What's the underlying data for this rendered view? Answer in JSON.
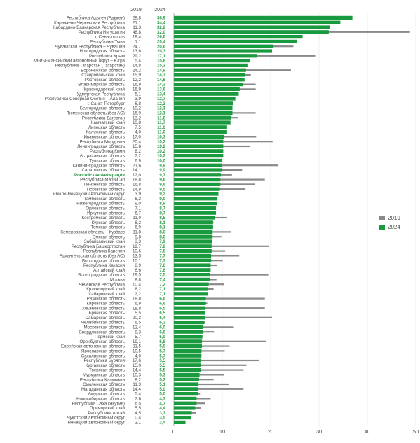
{
  "chart_data": {
    "type": "bar",
    "orientation": "horizontal",
    "headers": {
      "c2019": "2019",
      "c2024": "2024"
    },
    "highlight": "Российская Федерация",
    "xlim": [
      0,
      50
    ],
    "xticks": [
      "0",
      "10",
      "20",
      "30",
      "40",
      "50"
    ],
    "legend": {
      "position": "right",
      "s2019": "2019",
      "s2024": "2024"
    },
    "colors": {
      "s2019": "#8a8a8a",
      "s2024": "#1a9a3e"
    },
    "rows": [
      {
        "name": "Республика Адыгея (Адыгея)",
        "v2019": "28,8",
        "v2024": "36,9"
      },
      {
        "name": "Карачаево-Черкесская Республика",
        "v2019": "21,1",
        "v2024": "34,4"
      },
      {
        "name": "Кабардино-Балкарская Республика",
        "v2019": "11,3",
        "v2024": "32,2"
      },
      {
        "name": "Республика Ингушетия",
        "v2019": "48,8",
        "v2024": "32,0"
      },
      {
        "name": "г. Севастополь",
        "v2019": "19,4",
        "v2024": "26,6"
      },
      {
        "name": "Республика Тыва",
        "v2019": "1,1",
        "v2024": "25,4"
      },
      {
        "name": "Чувашская Республика – Чувашия",
        "v2019": "24,7",
        "v2024": "20,6"
      },
      {
        "name": "Новгородская область",
        "v2019": "13,6",
        "v2024": "20,3"
      },
      {
        "name": "Республика Крым",
        "v2019": "29,2",
        "v2024": "17,1"
      },
      {
        "name": "Ханты-Мансийский автономный округ – Югра",
        "v2019": "5,4",
        "v2024": "15,8"
      },
      {
        "name": "Республика Татарстан (Татарстан)",
        "v2019": "14,8",
        "v2024": "15,2"
      },
      {
        "name": "Воронежская область",
        "v2019": "24,2",
        "v2024": "14,9"
      },
      {
        "name": "Ставропольский край",
        "v2019": "15,9",
        "v2024": "14,7"
      },
      {
        "name": "Ростовская область",
        "v2019": "12,2",
        "v2024": "14,6"
      },
      {
        "name": "Владимирская область",
        "v2019": "16,9",
        "v2024": "14,2"
      },
      {
        "name": "Краснодарский край",
        "v2019": "16,9",
        "v2024": "13,6"
      },
      {
        "name": "Удмуртская Республика",
        "v2019": "5,1",
        "v2024": "13,4"
      },
      {
        "name": "Республика Северная Осетия – Алания",
        "v2019": "3,9",
        "v2024": "12,7"
      },
      {
        "name": "г. Санкт-Петербург",
        "v2019": "6,8",
        "v2024": "12,3"
      },
      {
        "name": "Белгородская область",
        "v2019": "10,2",
        "v2024": "12,1"
      },
      {
        "name": "Тюменская область (без АО)",
        "v2019": "16,9",
        "v2024": "12,1"
      },
      {
        "name": "Республика Дагестан",
        "v2019": "13,2",
        "v2024": "11,8"
      },
      {
        "name": "Камчатский край",
        "v2019": "10,8",
        "v2024": "11,7"
      },
      {
        "name": "Липецкая область",
        "v2019": "7,5",
        "v2024": "11,0"
      },
      {
        "name": "Калужская область",
        "v2019": "4,0",
        "v2024": "11,0"
      },
      {
        "name": "Ивановская область",
        "v2019": "17,0",
        "v2024": "10,3"
      },
      {
        "name": "Республика Мордовия",
        "v2019": "20,4",
        "v2024": "10,2"
      },
      {
        "name": "Ленинградская область",
        "v2019": "15,8",
        "v2024": "10,2"
      },
      {
        "name": "Республика Коми",
        "v2019": "8,2",
        "v2024": "10,2"
      },
      {
        "name": "Астраханская область",
        "v2019": "7,2",
        "v2024": "10,2"
      },
      {
        "name": "Тульская область",
        "v2019": "6,9",
        "v2024": "10,0"
      },
      {
        "name": "Калининградская область",
        "v2019": "21,6",
        "v2024": "9,9"
      },
      {
        "name": "Саратовская область",
        "v2019": "14,1",
        "v2024": "9,9"
      },
      {
        "name": "Российская Федерация",
        "v2019": "12,0",
        "v2024": "9,7"
      },
      {
        "name": "Республика Марий Эл",
        "v2019": "18,8",
        "v2024": "9,6"
      },
      {
        "name": "Пензенская область",
        "v2019": "16,8",
        "v2024": "9,6"
      },
      {
        "name": "Псковская область",
        "v2019": "14,8",
        "v2024": "9,5"
      },
      {
        "name": "Ямало-Ненецкий автономный округ",
        "v2019": "3,9",
        "v2024": "9,2"
      },
      {
        "name": "Тамбовская область",
        "v2019": "6,2",
        "v2024": "9,0"
      },
      {
        "name": "Нижегородская область",
        "v2019": "9,0",
        "v2024": "8,9"
      },
      {
        "name": "Орловская область",
        "v2019": "7,1",
        "v2024": "8,7"
      },
      {
        "name": "Иркутская область",
        "v2019": "6,7",
        "v2024": "8,7"
      },
      {
        "name": "Костромская область",
        "v2019": "11,0",
        "v2024": "8,5"
      },
      {
        "name": "Курская область",
        "v2019": "8,2",
        "v2024": "8,1"
      },
      {
        "name": "Томская область",
        "v2019": "6,9",
        "v2024": "8,1"
      },
      {
        "name": "Кемеровская область – Кузбасс",
        "v2019": "11,8",
        "v2024": "8,0"
      },
      {
        "name": "Омская область",
        "v2019": "9,8",
        "v2024": "8,0"
      },
      {
        "name": "Забайкальский край",
        "v2019": "3,3",
        "v2024": "7,9"
      },
      {
        "name": "Республика Башкортостан",
        "v2019": "19,7",
        "v2024": "7,8"
      },
      {
        "name": "Республика Карелия",
        "v2019": "10,6",
        "v2024": "7,8"
      },
      {
        "name": "Архангельская область (без АО)",
        "v2019": "13,5",
        "v2024": "7,7"
      },
      {
        "name": "Вологодская область",
        "v2019": "10,1",
        "v2024": "7,7"
      },
      {
        "name": "Республика Хакасия",
        "v2019": "8,9",
        "v2024": "7,6"
      },
      {
        "name": "Алтайский край",
        "v2019": "6,6",
        "v2024": "7,6"
      },
      {
        "name": "Волгоградская область",
        "v2019": "19,5",
        "v2024": "7,5"
      },
      {
        "name": "г. Москва",
        "v2019": "8,8",
        "v2024": "7,4"
      },
      {
        "name": "Чеченская Республика",
        "v2019": "10,4",
        "v2024": "7,2"
      },
      {
        "name": "Красноярский край",
        "v2019": "8,2",
        "v2024": "7,1"
      },
      {
        "name": "Хабаровский край",
        "v2019": "2,2",
        "v2024": "7,1"
      },
      {
        "name": "Рязанская область",
        "v2019": "18,8",
        "v2024": "6,6"
      },
      {
        "name": "Кировская область",
        "v2019": "6,9",
        "v2024": "6,6"
      },
      {
        "name": "Ульяновская область",
        "v2019": "18,8",
        "v2024": "6,5"
      },
      {
        "name": "Брянская область",
        "v2019": "5,5",
        "v2024": "6,5"
      },
      {
        "name": "Самарская область",
        "v2019": "20,3",
        "v2024": "6,4"
      },
      {
        "name": "Челябинская область",
        "v2019": "6,5",
        "v2024": "6,3"
      },
      {
        "name": "Московская область",
        "v2019": "12,4",
        "v2024": "6,0"
      },
      {
        "name": "Свердловская область",
        "v2019": "8,3",
        "v2024": "6,0"
      },
      {
        "name": "Пермский край",
        "v2019": "5,7",
        "v2024": "5,9"
      },
      {
        "name": "Оренбургская область",
        "v2019": "19,1",
        "v2024": "5,8"
      },
      {
        "name": "Еврейская автономная область",
        "v2019": "11,5",
        "v2024": "5,8"
      },
      {
        "name": "Ярославская область",
        "v2019": "10,5",
        "v2024": "5,7"
      },
      {
        "name": "Сахалинская область",
        "v2019": "4,0",
        "v2024": "5,7"
      },
      {
        "name": "Республика Бурятия",
        "v2019": "17,6",
        "v2024": "5,5"
      },
      {
        "name": "Курганская область",
        "v2019": "15,0",
        "v2024": "5,5"
      },
      {
        "name": "Тверская область",
        "v2019": "14,4",
        "v2024": "5,5"
      },
      {
        "name": "Мурманская область",
        "v2019": "10,3",
        "v2024": "5,3"
      },
      {
        "name": "Республика Калмыкия",
        "v2019": "8,2",
        "v2024": "5,2"
      },
      {
        "name": "Смоленская область",
        "v2019": "11,3",
        "v2024": "5,1"
      },
      {
        "name": "Магаданская область",
        "v2019": "14,4",
        "v2024": "5,0"
      },
      {
        "name": "Амурская область",
        "v2019": "5,4",
        "v2024": "5,0"
      },
      {
        "name": "Новосибирская область",
        "v2019": "7,6",
        "v2024": "4,7"
      },
      {
        "name": "Республика Саха (Якутия)",
        "v2019": "6,5",
        "v2024": "4,7"
      },
      {
        "name": "Приморский край",
        "v2019": "5,5",
        "v2024": "4,4"
      },
      {
        "name": "Республика Алтай",
        "v2019": "4,5",
        "v2024": "3,7"
      },
      {
        "name": "Чукотский автономный округ",
        "v2019": "0,4",
        "v2024": "3,5"
      },
      {
        "name": "Ненецкий автономный округ",
        "v2019": "2,1",
        "v2024": "2,4"
      }
    ]
  }
}
